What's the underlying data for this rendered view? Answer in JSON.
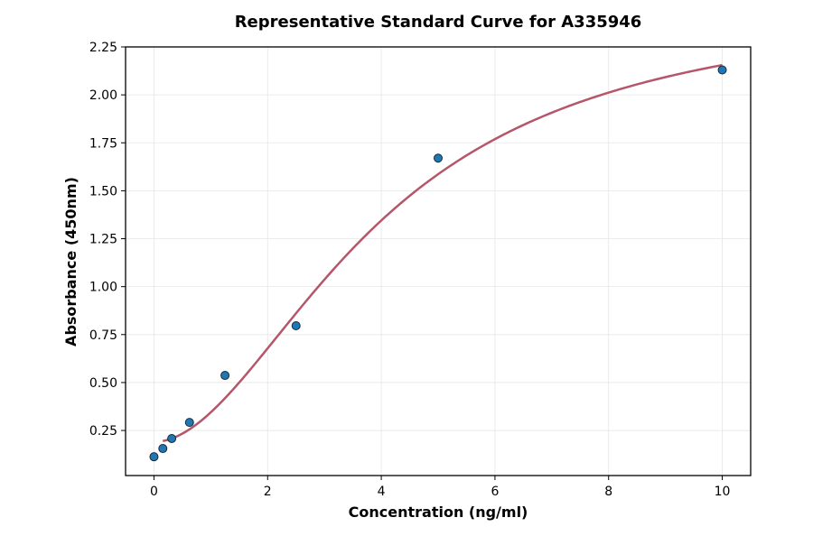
{
  "chart_data": {
    "type": "scatter",
    "title": "Representative Standard Curve for A335946",
    "xlabel": "Concentration (ng/ml)",
    "ylabel": "Absorbance (450nm)",
    "xlim": [
      -0.5,
      10.5
    ],
    "ylim": [
      0.015,
      2.25
    ],
    "xticks": [
      0,
      2,
      4,
      6,
      8,
      10
    ],
    "xtick_labels": [
      "0",
      "2",
      "4",
      "6",
      "8",
      "10"
    ],
    "yticks": [
      0.25,
      0.5,
      0.75,
      1.0,
      1.25,
      1.5,
      1.75,
      2.0,
      2.25
    ],
    "ytick_labels": [
      "0.25",
      "0.50",
      "0.75",
      "1.00",
      "1.25",
      "1.50",
      "1.75",
      "2.00",
      "2.25"
    ],
    "grid": true,
    "points": {
      "x": [
        0,
        0.156,
        0.3125,
        0.625,
        1.25,
        2.5,
        5,
        10
      ],
      "y": [
        0.113,
        0.156,
        0.208,
        0.292,
        0.537,
        0.796,
        1.67,
        2.13
      ],
      "color": "#1f77b4"
    },
    "fit_curve": {
      "model": "4PL",
      "params": {
        "A": 0.19,
        "B": 1.9,
        "C": 4.0,
        "D": 2.5
      },
      "x_range": [
        0.156,
        10
      ],
      "color": "#b5566a"
    }
  }
}
